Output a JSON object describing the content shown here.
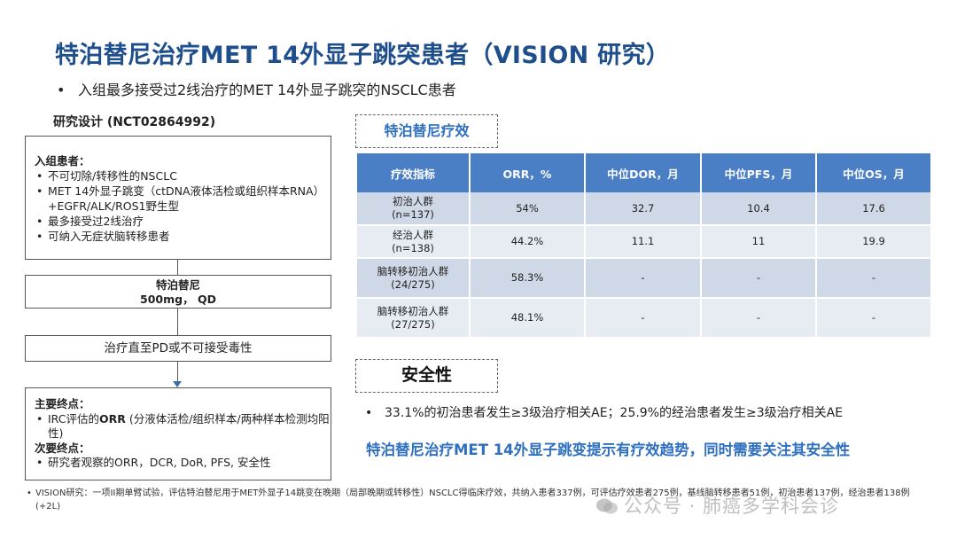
{
  "title": "特泊替尼治疗MET 14外显子跳突患者（VISION 研究）",
  "top_bullet": "入组最多接受过2线治疗的MET 14外显子跳突的NSCLC患者",
  "design": {
    "title": "研究设计 (NCT02864992)",
    "enroll_header": "入组患者：",
    "enroll_items": [
      "不可切除/转移性的NSCLC",
      "MET 14外显子跳变（ctDNA液体活检或组织样本RNA）+EGFR/ALK/ROS1野生型",
      "最多接受过2线治疗",
      "可纳入无症状脑转移患者"
    ],
    "drug_name": "特泊替尼",
    "drug_dose": "500mg，  QD",
    "treatment": "治疗直至PD或不可接受毒性",
    "primary_header": "主要终点：",
    "primary_prefix": "IRC评估的",
    "primary_bold": "ORR",
    "primary_suffix": " (分液体活检/组织样本/两种样本检测均阳性)",
    "secondary_header": "次要终点：",
    "secondary_item": "研究者观察的ORR，DCR, DoR, PFS, 安全性"
  },
  "efficacy": {
    "label": "特泊替尼疗效",
    "headers": [
      "疗效指标",
      "ORR，%",
      "中位DOR，月",
      "中位PFS，月",
      "中位OS，月"
    ],
    "rows": [
      {
        "group": "初治人群",
        "n": "(n=137)",
        "orr": "54%",
        "dor": "32.7",
        "pfs": "10.4",
        "os": "17.6"
      },
      {
        "group": "经治人群",
        "n": "(n=138)",
        "orr": "44.2%",
        "dor": "11.1",
        "pfs": "11",
        "os": "19.9"
      },
      {
        "group": "脑转移初治人群",
        "n": "(24/275)",
        "orr": "58.3%",
        "dor": "-",
        "pfs": "-",
        "os": "-"
      },
      {
        "group": "脑转移初治人群",
        "n": "(27/275)",
        "orr": "48.1%",
        "dor": "-",
        "pfs": "-",
        "os": "-"
      }
    ]
  },
  "safety": {
    "label": "安全性",
    "bullet": "33.1%的初治患者发生≥3级治疗相关AE；25.9%的经治患者发生≥3级治疗相关AE"
  },
  "conclusion": "特泊替尼治疗MET 14外显子跳变提示有疗效趋势，同时需要关注其安全性",
  "footnote": "VISION研究：一项II期单臂试验，评估特泊替尼用于MET外显子14跳变在晚期（局部晚期或转移性）NSCLC得临床疗效，共纳入患者337例，可评估疗效患者275例，基线脑转移患者51例，初治患者137例，经治患者138例(+2L)",
  "watermark": "公众号 · 肺癌多学科会诊",
  "colors": {
    "title": "#1f4e8c",
    "accent": "#2e6fbf",
    "table_header": "#4a7ec5",
    "row_dark": "#cfd8e6",
    "row_light": "#e7ecf3"
  }
}
